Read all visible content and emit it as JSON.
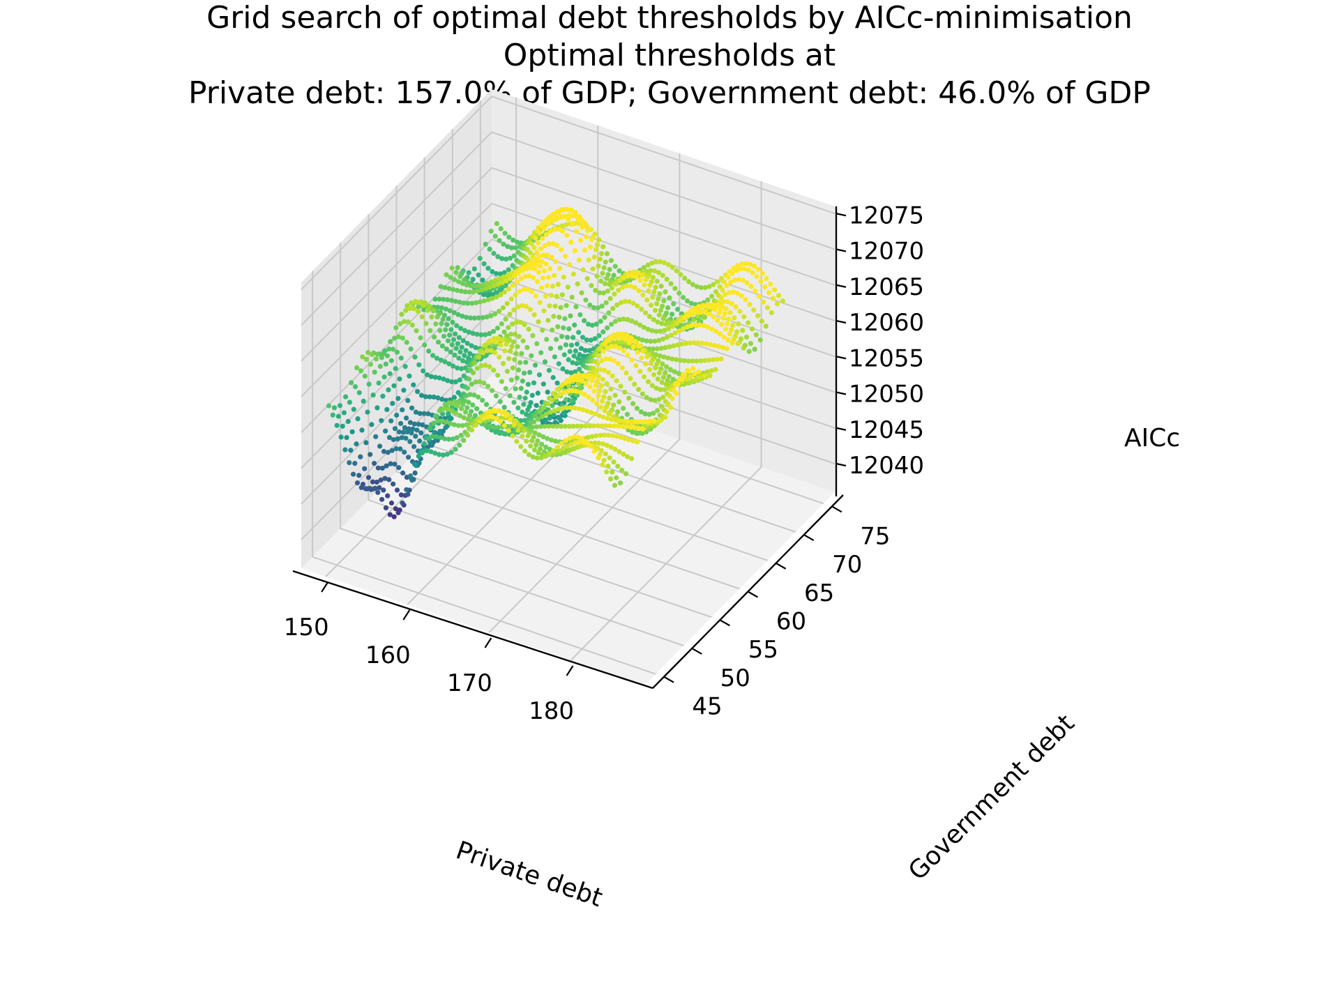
{
  "chart_data": {
    "type": "3d-scatter",
    "title": "Grid search of optimal debt thresholds by AICc-minimisation",
    "subtitle_lines": [
      "Optimal thresholds at",
      "Private debt: 157.0% of GDP; Government debt: 46.0% of GDP"
    ],
    "x": {
      "label": "Private debt",
      "ticks": [
        150,
        160,
        170,
        180
      ],
      "range": [
        147,
        189
      ]
    },
    "y": {
      "label": "Government debt",
      "ticks": [
        45,
        50,
        55,
        60,
        65,
        70,
        75
      ],
      "range": [
        43,
        77
      ]
    },
    "z": {
      "label": "AICc",
      "ticks": [
        12040,
        12045,
        12050,
        12055,
        12060,
        12065,
        12070,
        12075
      ],
      "range": [
        12036,
        12076
      ]
    },
    "colormap": "viridis",
    "grid": true,
    "x_data_range": [
      149,
      184
    ],
    "y_data_range": [
      45,
      75
    ],
    "minimum_point": {
      "x": 157.0,
      "y": 46.0
    }
  }
}
